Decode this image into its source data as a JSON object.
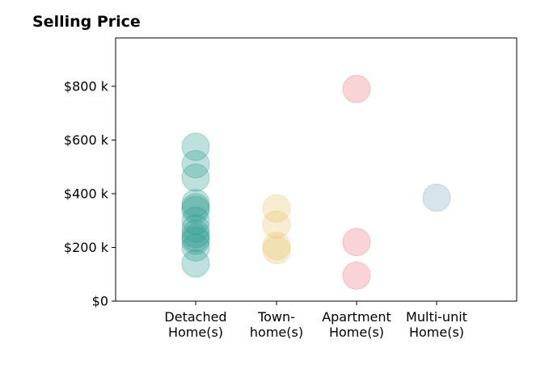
{
  "chart_data": {
    "type": "scatter",
    "title": "Selling Price",
    "categories": [
      "Detached\nHome(s)",
      "Town-\nhome(s)",
      "Apartment\nHome(s)",
      "Multi-unit\nHome(s)"
    ],
    "ylim": [
      0,
      980
    ],
    "yticks": [
      {
        "value": 0,
        "label": "$0"
      },
      {
        "value": 200,
        "label": "$200 k"
      },
      {
        "value": 400,
        "label": "$400 k"
      },
      {
        "value": 600,
        "label": "$600 k"
      },
      {
        "value": 800,
        "label": "$800 k"
      }
    ],
    "grid": false,
    "series": [
      {
        "category_index": 0,
        "color": "#2a9d8f",
        "values": [
          575,
          510,
          460,
          365,
          350,
          340,
          300,
          270,
          250,
          235,
          225,
          200,
          140
        ]
      },
      {
        "category_index": 1,
        "color": "#e9c46a",
        "values": [
          345,
          285,
          205,
          190
        ]
      },
      {
        "category_index": 2,
        "color": "#e76f7a",
        "values": [
          790,
          220,
          95
        ]
      },
      {
        "category_index": 3,
        "color": "#7fa6bd",
        "values": [
          385
        ]
      }
    ]
  }
}
